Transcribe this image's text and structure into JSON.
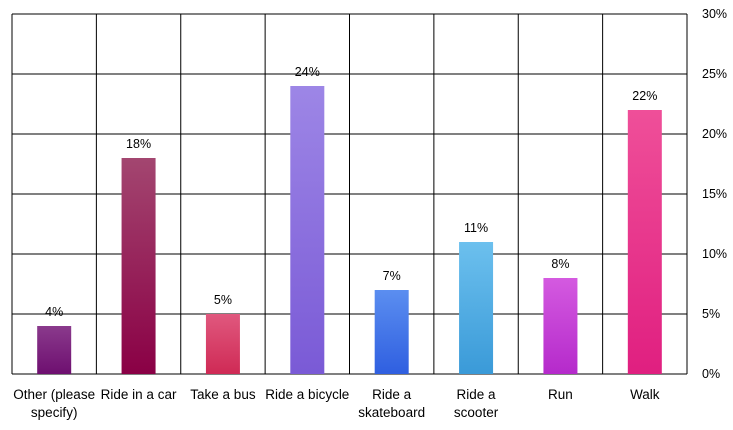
{
  "chart_data": {
    "type": "bar",
    "categories": [
      [
        "Other (please",
        "specify)"
      ],
      [
        "Ride in a car"
      ],
      [
        "Take a bus"
      ],
      [
        "Ride a bicycle"
      ],
      [
        "Ride a",
        "skateboard"
      ],
      [
        "Ride a",
        "scooter"
      ],
      [
        "Run"
      ],
      [
        "Walk"
      ]
    ],
    "values": [
      4,
      18,
      5,
      24,
      7,
      11,
      8,
      22
    ],
    "data_labels": [
      "4%",
      "18%",
      "5%",
      "24%",
      "7%",
      "11%",
      "8%",
      "22%"
    ],
    "ylim": [
      0,
      30
    ],
    "yticks": [
      0,
      5,
      10,
      15,
      20,
      25,
      30
    ],
    "ytick_labels": [
      "0%",
      "5%",
      "10%",
      "15%",
      "20%",
      "25%",
      "30%"
    ],
    "y_axis_side": "right",
    "grid": true,
    "title": "",
    "xlabel": "",
    "ylabel": "",
    "bar_gradients": [
      [
        "#8a3a8c",
        "#6e0f70"
      ],
      [
        "#a34670",
        "#8a0045"
      ],
      [
        "#e0587e",
        "#cf2a55"
      ],
      [
        "#9d86e6",
        "#7a5ad6"
      ],
      [
        "#5b8ef0",
        "#2f5fe0"
      ],
      [
        "#6cc0ee",
        "#3a9ad8"
      ],
      [
        "#d45ae0",
        "#b52acb"
      ],
      [
        "#ef4f99",
        "#e01f80"
      ]
    ]
  }
}
